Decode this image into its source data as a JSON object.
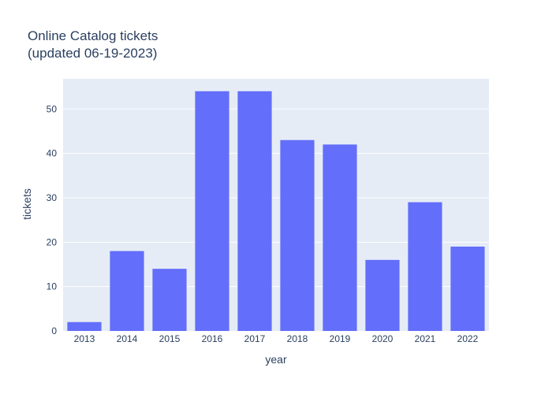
{
  "colors": {
    "plot_bg": "#e5ecf6",
    "grid": "#ffffff",
    "bar": "#636efa",
    "text": "#2a3f5f"
  },
  "chart_data": {
    "type": "bar",
    "title_line1": "Online Catalog tickets",
    "title_line2": "(updated 06-19-2023)",
    "xlabel": "year",
    "ylabel": "tickets",
    "categories": [
      "2013",
      "2014",
      "2015",
      "2016",
      "2017",
      "2018",
      "2019",
      "2020",
      "2021",
      "2022"
    ],
    "values": [
      2,
      18,
      14,
      54,
      54,
      43,
      42,
      16,
      29,
      19
    ],
    "ylim": [
      0,
      56.8
    ],
    "yticks": [
      0,
      10,
      20,
      30,
      40,
      50
    ],
    "grid": true,
    "legend": "none"
  }
}
